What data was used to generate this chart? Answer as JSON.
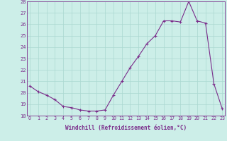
{
  "x": [
    0,
    1,
    2,
    3,
    4,
    5,
    6,
    7,
    8,
    9,
    10,
    11,
    12,
    13,
    14,
    15,
    16,
    17,
    18,
    19,
    20,
    21,
    22,
    23
  ],
  "y": [
    20.6,
    20.1,
    19.8,
    19.4,
    18.8,
    18.7,
    18.5,
    18.4,
    18.4,
    18.5,
    19.8,
    21.0,
    22.2,
    23.2,
    24.3,
    25.0,
    26.3,
    26.3,
    26.2,
    28.0,
    26.3,
    26.1,
    20.8,
    18.6
  ],
  "xlabel": "Windchill (Refroidissement éolien,°C)",
  "ylim": [
    18,
    28
  ],
  "yticks": [
    18,
    19,
    20,
    21,
    22,
    23,
    24,
    25,
    26,
    27,
    28
  ],
  "xticks": [
    0,
    1,
    2,
    3,
    4,
    5,
    6,
    7,
    8,
    9,
    10,
    11,
    12,
    13,
    14,
    15,
    16,
    17,
    18,
    19,
    20,
    21,
    22,
    23
  ],
  "line_color": "#7b2d8b",
  "bg_color": "#cceee8",
  "grid_color": "#aad8d0"
}
